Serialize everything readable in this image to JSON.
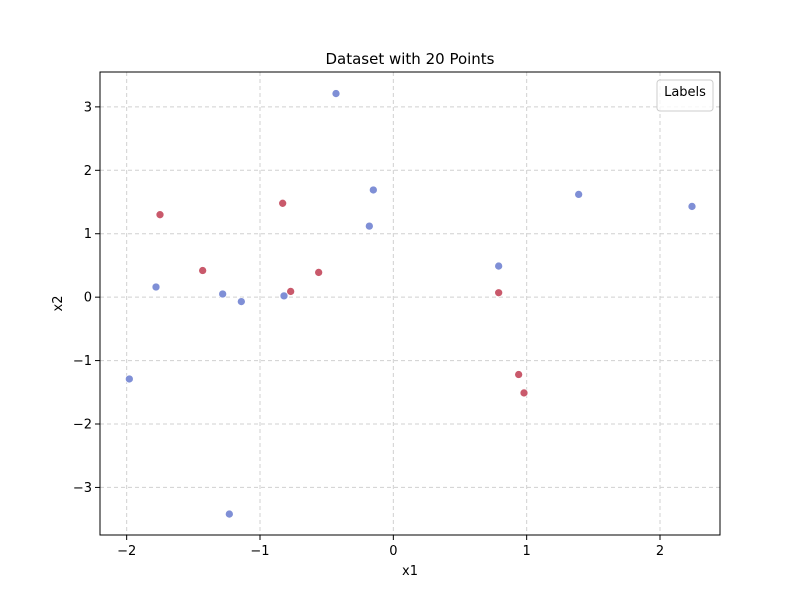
{
  "chart_data": {
    "type": "scatter",
    "title": "Dataset with 20 Points",
    "xlabel": "x1",
    "ylabel": "x2",
    "xlim": [
      -2.2,
      2.45
    ],
    "ylim": [
      -3.75,
      3.55
    ],
    "xticks": [
      -2,
      -1,
      0,
      1,
      2
    ],
    "yticks": [
      -3,
      -2,
      -1,
      0,
      1,
      2,
      3
    ],
    "grid": true,
    "legend": {
      "title": "Labels",
      "placement": "top-right"
    },
    "series": [
      {
        "color": "#7f8fd6",
        "points": [
          [
            -1.98,
            -1.29
          ],
          [
            -1.78,
            0.16
          ],
          [
            -1.28,
            0.05
          ],
          [
            -1.14,
            -0.07
          ],
          [
            -1.23,
            -3.42
          ],
          [
            -0.82,
            0.02
          ],
          [
            -0.43,
            3.21
          ],
          [
            -0.18,
            1.12
          ],
          [
            -0.15,
            1.69
          ],
          [
            0.79,
            0.49
          ],
          [
            1.39,
            1.62
          ],
          [
            2.24,
            1.43
          ]
        ]
      },
      {
        "color": "#c9596b",
        "points": [
          [
            -1.75,
            1.3
          ],
          [
            -1.43,
            0.42
          ],
          [
            -0.83,
            1.48
          ],
          [
            -0.77,
            0.09
          ],
          [
            -0.56,
            0.39
          ],
          [
            0.79,
            0.07
          ],
          [
            0.94,
            -1.22
          ],
          [
            0.98,
            -1.51
          ]
        ]
      }
    ]
  }
}
